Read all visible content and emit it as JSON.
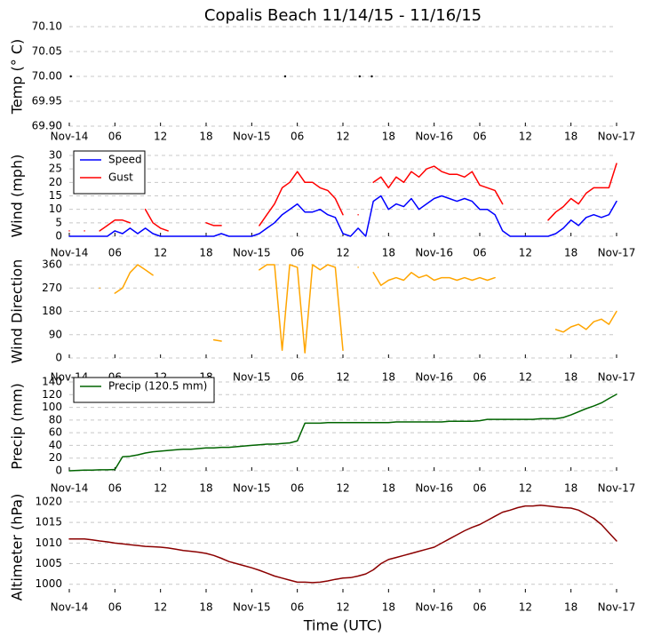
{
  "chart_data": [
    {
      "type": "scatter",
      "title": "Copalis Beach 11/14/15 - 11/16/15",
      "ylabel": "Temp (° C)",
      "x": [
        0.2,
        28.4,
        38.2,
        39.8
      ],
      "series": [
        {
          "color": "#000000",
          "values": [
            70,
            70,
            70,
            70
          ]
        }
      ],
      "xlim": [
        0,
        72
      ],
      "ylim": [
        69.9,
        70.1
      ],
      "yticks": [
        {
          "value": 69.9,
          "label": "69.90"
        },
        {
          "value": 69.95,
          "label": "69.95"
        },
        {
          "value": 70,
          "label": "70.00"
        },
        {
          "value": 70.05,
          "label": "70.05"
        },
        {
          "value": 70.1,
          "label": "70.10"
        }
      ],
      "xticks": [
        {
          "value": 0,
          "label": "Nov-14"
        },
        {
          "value": 6,
          "label": "06"
        },
        {
          "value": 12,
          "label": "12"
        },
        {
          "value": 18,
          "label": "18"
        },
        {
          "value": 24,
          "label": "Nov-15"
        },
        {
          "value": 30,
          "label": "06"
        },
        {
          "value": 36,
          "label": "12"
        },
        {
          "value": 42,
          "label": "18"
        },
        {
          "value": 48,
          "label": "Nov-16"
        },
        {
          "value": 54,
          "label": "06"
        },
        {
          "value": 60,
          "label": "12"
        },
        {
          "value": 66,
          "label": "18"
        },
        {
          "value": 72,
          "label": "Nov-17"
        }
      ],
      "grid": true
    },
    {
      "type": "line",
      "ylabel": "Wind (mph)",
      "x": [
        0,
        1,
        2,
        3,
        4,
        5,
        6,
        7,
        8,
        9,
        10,
        11,
        12,
        13,
        14,
        15,
        16,
        17,
        18,
        19,
        20,
        21,
        22,
        23,
        24,
        25,
        26,
        27,
        28,
        29,
        30,
        31,
        32,
        33,
        34,
        35,
        36,
        37,
        38,
        39,
        40,
        41,
        42,
        43,
        44,
        45,
        46,
        47,
        48,
        49,
        50,
        51,
        52,
        53,
        54,
        55,
        56,
        57,
        58,
        59,
        60,
        61,
        62,
        63,
        64,
        65,
        66,
        67,
        68,
        69,
        70,
        71,
        72
      ],
      "series": [
        {
          "name": "Speed",
          "color": "#0000ff",
          "values": [
            0,
            0,
            0,
            0,
            0,
            0,
            2,
            1,
            3,
            1,
            3,
            1,
            0,
            0,
            0,
            0,
            0,
            0,
            0,
            0,
            1,
            0,
            0,
            0,
            0,
            1,
            3,
            5,
            8,
            10,
            12,
            9,
            9,
            10,
            8,
            7,
            1,
            0,
            3,
            0,
            13,
            15,
            10,
            12,
            11,
            14,
            10,
            12,
            14,
            15,
            14,
            13,
            14,
            13,
            10,
            10,
            8,
            2,
            0,
            0,
            0,
            0,
            0,
            0,
            1,
            3,
            6,
            4,
            7,
            8,
            7,
            8,
            13
          ]
        },
        {
          "name": "Gust",
          "color": "#ff0000",
          "values": [
            2,
            null,
            2,
            null,
            2,
            4,
            6,
            6,
            5,
            null,
            10,
            5,
            3,
            2,
            null,
            null,
            null,
            null,
            5,
            4,
            4,
            null,
            null,
            null,
            null,
            4,
            8,
            12,
            18,
            20,
            24,
            20,
            20,
            18,
            17,
            14,
            8,
            null,
            8,
            null,
            20,
            22,
            18,
            22,
            20,
            24,
            22,
            25,
            26,
            24,
            23,
            23,
            22,
            24,
            19,
            18,
            17,
            12,
            null,
            null,
            null,
            null,
            null,
            6,
            9,
            11,
            14,
            12,
            16,
            18,
            18,
            18,
            27
          ]
        }
      ],
      "xlim": [
        0,
        72
      ],
      "ylim": [
        0,
        30
      ],
      "yticks": [
        0,
        5,
        10,
        15,
        20,
        25,
        30
      ],
      "xticks": [
        {
          "value": 0,
          "label": "Nov-14"
        },
        {
          "value": 6,
          "label": "06"
        },
        {
          "value": 12,
          "label": "12"
        },
        {
          "value": 18,
          "label": "18"
        },
        {
          "value": 24,
          "label": "Nov-15"
        },
        {
          "value": 30,
          "label": "06"
        },
        {
          "value": 36,
          "label": "12"
        },
        {
          "value": 42,
          "label": "18"
        },
        {
          "value": 48,
          "label": "Nov-16"
        },
        {
          "value": 54,
          "label": "06"
        },
        {
          "value": 60,
          "label": "12"
        },
        {
          "value": 66,
          "label": "18"
        },
        {
          "value": 72,
          "label": "Nov-17"
        }
      ],
      "grid": true,
      "legend": "upper left"
    },
    {
      "type": "line",
      "ylabel": "Wind Direction",
      "x": [
        0,
        1,
        2,
        3,
        4,
        5,
        6,
        7,
        8,
        9,
        10,
        11,
        12,
        13,
        14,
        15,
        16,
        17,
        18,
        19,
        20,
        21,
        22,
        23,
        24,
        25,
        26,
        27,
        28,
        29,
        30,
        31,
        32,
        33,
        34,
        35,
        36,
        37,
        38,
        39,
        40,
        41,
        42,
        43,
        44,
        45,
        46,
        47,
        48,
        49,
        50,
        51,
        52,
        53,
        54,
        55,
        56,
        57,
        58,
        59,
        60,
        61,
        62,
        63,
        64,
        65,
        66,
        67,
        68,
        69,
        70,
        71,
        72
      ],
      "series": [
        {
          "color": "#ffa500",
          "values": [
            null,
            null,
            null,
            null,
            270,
            null,
            250,
            270,
            330,
            360,
            340,
            320,
            null,
            null,
            null,
            null,
            null,
            null,
            null,
            70,
            65,
            null,
            null,
            null,
            null,
            340,
            360,
            360,
            30,
            360,
            350,
            20,
            360,
            340,
            360,
            350,
            30,
            null,
            350,
            null,
            330,
            280,
            300,
            310,
            300,
            330,
            310,
            320,
            300,
            310,
            310,
            300,
            310,
            300,
            310,
            300,
            310,
            null,
            null,
            null,
            null,
            null,
            null,
            null,
            110,
            100,
            120,
            130,
            110,
            140,
            150,
            130,
            180
          ]
        }
      ],
      "xlim": [
        0,
        72
      ],
      "ylim": [
        0,
        360
      ],
      "yticks": [
        0,
        90,
        180,
        270,
        360
      ],
      "xticks": [
        {
          "value": 0,
          "label": "Nov-14"
        },
        {
          "value": 6,
          "label": "06"
        },
        {
          "value": 12,
          "label": "12"
        },
        {
          "value": 18,
          "label": "18"
        },
        {
          "value": 24,
          "label": "Nov-15"
        },
        {
          "value": 30,
          "label": "06"
        },
        {
          "value": 36,
          "label": "12"
        },
        {
          "value": 42,
          "label": "18"
        },
        {
          "value": 48,
          "label": "Nov-16"
        },
        {
          "value": 54,
          "label": "06"
        },
        {
          "value": 60,
          "label": "12"
        },
        {
          "value": 66,
          "label": "18"
        },
        {
          "value": 72,
          "label": "Nov-17"
        }
      ],
      "grid": true
    },
    {
      "type": "line",
      "ylabel": "Precip (mm)",
      "x": [
        0,
        1,
        2,
        3,
        4,
        5,
        6,
        7,
        8,
        9,
        10,
        11,
        12,
        13,
        14,
        15,
        16,
        17,
        18,
        19,
        20,
        21,
        22,
        23,
        24,
        25,
        26,
        27,
        28,
        29,
        30,
        31,
        32,
        33,
        34,
        35,
        36,
        37,
        38,
        39,
        40,
        41,
        42,
        43,
        44,
        45,
        46,
        47,
        48,
        49,
        50,
        51,
        52,
        53,
        54,
        55,
        56,
        57,
        58,
        59,
        60,
        61,
        62,
        63,
        64,
        65,
        66,
        67,
        68,
        69,
        70,
        71,
        72
      ],
      "series": [
        {
          "name": "Precip (120.5 mm)",
          "color": "#006400",
          "values": [
            0,
            0.5,
            1,
            1,
            1.5,
            1.5,
            2,
            22,
            23,
            25,
            28,
            30,
            31,
            32,
            33,
            34,
            34,
            35,
            36,
            36,
            37,
            37,
            38,
            39,
            40,
            41,
            42,
            42,
            43,
            44,
            47,
            75,
            75,
            75,
            76,
            76,
            76,
            76,
            76,
            76,
            76,
            76,
            76,
            77,
            77,
            77,
            77,
            77,
            77,
            77,
            78,
            78,
            78,
            78,
            79,
            81,
            81,
            81,
            81,
            81,
            81,
            81,
            82,
            82,
            82,
            84,
            88,
            93,
            98,
            102,
            107,
            114,
            120.5
          ]
        }
      ],
      "xlim": [
        0,
        72
      ],
      "ylim": [
        0,
        140
      ],
      "yticks": [
        0,
        20,
        40,
        60,
        80,
        100,
        120,
        140
      ],
      "xticks": [
        {
          "value": 0,
          "label": "Nov-14"
        },
        {
          "value": 6,
          "label": "06"
        },
        {
          "value": 12,
          "label": "12"
        },
        {
          "value": 18,
          "label": "18"
        },
        {
          "value": 24,
          "label": "Nov-15"
        },
        {
          "value": 30,
          "label": "06"
        },
        {
          "value": 36,
          "label": "12"
        },
        {
          "value": 42,
          "label": "18"
        },
        {
          "value": 48,
          "label": "Nov-16"
        },
        {
          "value": 54,
          "label": "06"
        },
        {
          "value": 60,
          "label": "12"
        },
        {
          "value": 66,
          "label": "18"
        },
        {
          "value": 72,
          "label": "Nov-17"
        }
      ],
      "grid": true,
      "legend": "upper left"
    },
    {
      "type": "line",
      "ylabel": "Altimeter (hPa)",
      "xlabel": "Time (UTC)",
      "x": [
        0,
        1,
        2,
        3,
        4,
        5,
        6,
        7,
        8,
        9,
        10,
        11,
        12,
        13,
        14,
        15,
        16,
        17,
        18,
        19,
        20,
        21,
        22,
        23,
        24,
        25,
        26,
        27,
        28,
        29,
        30,
        31,
        32,
        33,
        34,
        35,
        36,
        37,
        38,
        39,
        40,
        41,
        42,
        43,
        44,
        45,
        46,
        47,
        48,
        49,
        50,
        51,
        52,
        53,
        54,
        55,
        56,
        57,
        58,
        59,
        60,
        61,
        62,
        63,
        64,
        65,
        66,
        67,
        68,
        69,
        70,
        71,
        72
      ],
      "series": [
        {
          "color": "#8b0000",
          "values": [
            1011,
            1011,
            1011,
            1010.8,
            1010.5,
            1010.3,
            1010,
            1009.8,
            1009.6,
            1009.4,
            1009.2,
            1009.1,
            1009,
            1008.8,
            1008.5,
            1008.2,
            1008,
            1007.8,
            1007.5,
            1007,
            1006.3,
            1005.5,
            1005,
            1004.5,
            1004,
            1003.4,
            1002.7,
            1002,
            1001.5,
            1001,
            1000.5,
            1000.5,
            1000.4,
            1000.5,
            1000.8,
            1001.2,
            1001.5,
            1001.6,
            1002,
            1002.5,
            1003.5,
            1005,
            1006,
            1006.5,
            1007,
            1007.5,
            1008,
            1008.5,
            1009,
            1010,
            1011,
            1012,
            1013,
            1013.8,
            1014.5,
            1015.5,
            1016.5,
            1017.5,
            1018,
            1018.6,
            1019,
            1019,
            1019.2,
            1019,
            1018.8,
            1018.6,
            1018.5,
            1018,
            1017,
            1016,
            1014.5,
            1012.5,
            1010.5
          ]
        }
      ],
      "xlim": [
        0,
        72
      ],
      "ylim": [
        998,
        1020
      ],
      "yticks": [
        1000,
        1005,
        1010,
        1015,
        1020
      ],
      "xticks": [
        {
          "value": 0,
          "label": "Nov-14"
        },
        {
          "value": 6,
          "label": "06"
        },
        {
          "value": 12,
          "label": "12"
        },
        {
          "value": 18,
          "label": "18"
        },
        {
          "value": 24,
          "label": "Nov-15"
        },
        {
          "value": 30,
          "label": "06"
        },
        {
          "value": 36,
          "label": "12"
        },
        {
          "value": 42,
          "label": "18"
        },
        {
          "value": 48,
          "label": "Nov-16"
        },
        {
          "value": 54,
          "label": "06"
        },
        {
          "value": 60,
          "label": "12"
        },
        {
          "value": 66,
          "label": "18"
        },
        {
          "value": 72,
          "label": "Nov-17"
        }
      ],
      "grid": true
    }
  ]
}
